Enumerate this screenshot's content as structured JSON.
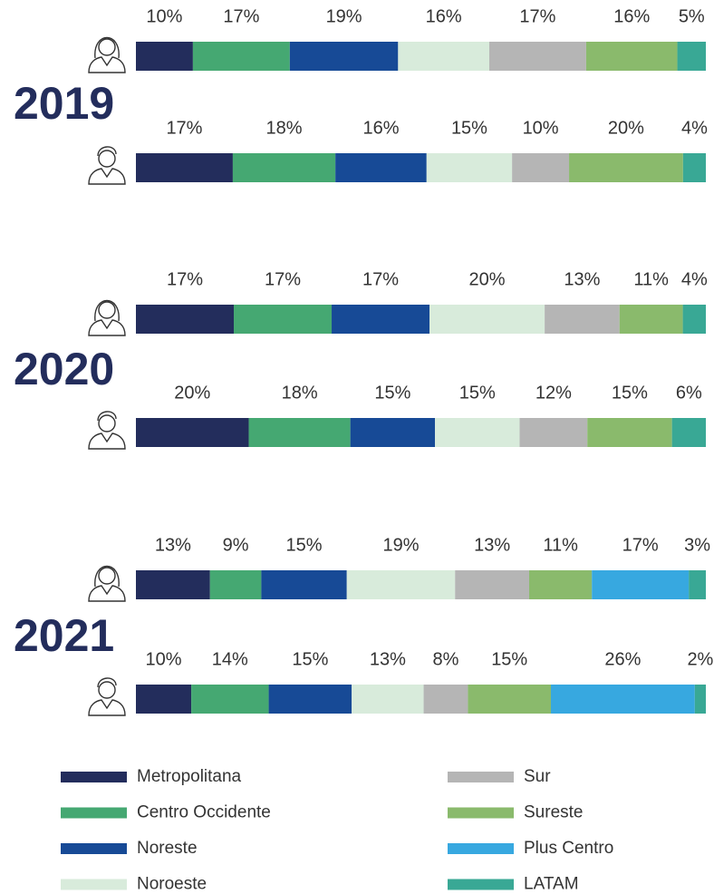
{
  "chart_data": {
    "type": "stacked-bar-100",
    "groups": [
      "2019",
      "2020",
      "2021"
    ],
    "categories": [
      null,
      null,
      null,
      null,
      null,
      null
    ],
    "series": [
      {
        "name": "Metropolitana",
        "color": "#232d5c",
        "values": [
          10,
          17,
          17,
          20,
          13,
          10
        ],
        "value_labels": [
          "10%",
          "17%",
          "17%",
          "20%",
          "13%",
          "10%"
        ]
      },
      {
        "name": "Centro Occidente",
        "color": "#45a872",
        "values": [
          17,
          18,
          17,
          18,
          9,
          14
        ],
        "value_labels": [
          "17%",
          "18%",
          "17%",
          "18%",
          "9%",
          "14%"
        ]
      },
      {
        "name": "Noreste",
        "color": "#174a96",
        "values": [
          19,
          16,
          17,
          15,
          15,
          15
        ],
        "value_labels": [
          "19%",
          "16%",
          "17%",
          "15%",
          "15%",
          "15%"
        ]
      },
      {
        "name": "Noroeste",
        "color": "#d8ebdb",
        "values": [
          16,
          15,
          20,
          15,
          19,
          13
        ],
        "value_labels": [
          "16%",
          "15%",
          "20%",
          "15%",
          "19%",
          "13%"
        ]
      },
      {
        "name": "Sur",
        "color": "#b5b5b5",
        "values": [
          17,
          10,
          13,
          12,
          13,
          8
        ],
        "value_labels": [
          "17%",
          "10%",
          "13%",
          "12%",
          "13%",
          "8%"
        ]
      },
      {
        "name": "Sureste",
        "color": "#8aba6c",
        "values": [
          16,
          20,
          11,
          15,
          11,
          15
        ],
        "value_labels": [
          "16%",
          "20%",
          "11%",
          "15%",
          "11%",
          "15%"
        ]
      },
      {
        "name": "Plus Centro",
        "color": "#37a8e0",
        "values": [
          null,
          null,
          null,
          null,
          17,
          26
        ],
        "value_labels": [
          null,
          null,
          null,
          null,
          "17%",
          "26%"
        ]
      },
      {
        "name": "LATAM",
        "color": "#39a895",
        "values": [
          5,
          4,
          4,
          6,
          3,
          2
        ],
        "value_labels": [
          "5%",
          "4%",
          "4%",
          "6%",
          "3%",
          "2%"
        ]
      }
    ]
  }
}
